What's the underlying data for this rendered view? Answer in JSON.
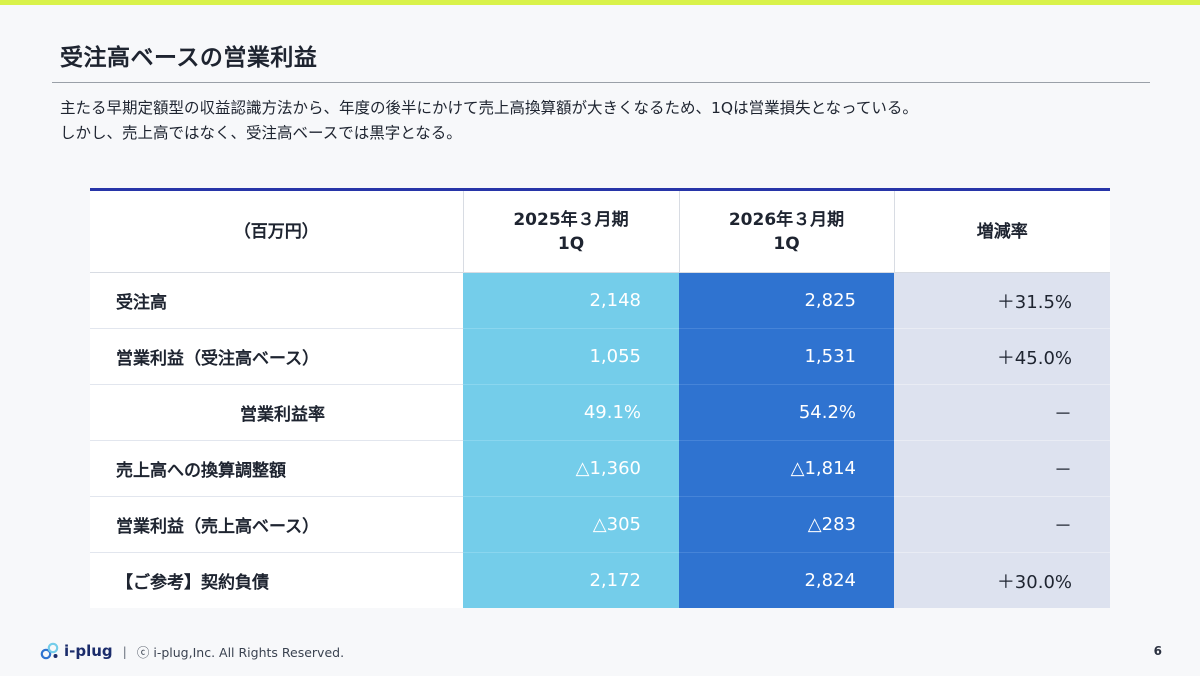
{
  "title": "受注高ベースの営業利益",
  "description": [
    "主たる早期定額型の収益認識方法から、年度の後半にかけて売上高換算額が大きくなるため、1Qは営業損失となっている。",
    "しかし、売上高ではなく、受注高ベースでは黒字となる。"
  ],
  "table": {
    "headers": {
      "unit": "（百万円）",
      "fy2025_l1": "2025年３月期",
      "fy2025_l2": "1Q",
      "fy2026_l1": "2026年３月期",
      "fy2026_l2": "1Q",
      "change": "増減率"
    },
    "rows": [
      {
        "label": "受注高",
        "fy2025": "2,148",
        "fy2026": "2,825",
        "change": "＋31.5%"
      },
      {
        "label": "営業利益（受注高ベース）",
        "fy2025": "1,055",
        "fy2026": "1,531",
        "change": "＋45.0%"
      },
      {
        "label": "営業利益率",
        "fy2025": "49.1%",
        "fy2026": "54.2%",
        "change": "－"
      },
      {
        "label": "売上高への換算調整額",
        "fy2025": "△1,360",
        "fy2026": "△1,814",
        "change": "－"
      },
      {
        "label": "営業利益（売上高ベース）",
        "fy2025": "△305",
        "fy2026": "△283",
        "change": "－"
      },
      {
        "label": "【ご参考】契約負債",
        "fy2025": "2,172",
        "fy2026": "2,824",
        "change": "＋30.0%"
      }
    ]
  },
  "footer": {
    "logo_text": "i-plug",
    "separator": "|",
    "copyright": "ⓒ i-plug,Inc. All Rights Reserved.",
    "page_number": "6"
  },
  "colors": {
    "accent_bar": "#d9f24a",
    "header_rule": "#2735a8",
    "fy2025_fill": "#74cdea",
    "fy2026_fill": "#2f73d0",
    "change_fill": "#dde2ef"
  },
  "icons": {
    "logo": "i-plug-logo-icon"
  }
}
